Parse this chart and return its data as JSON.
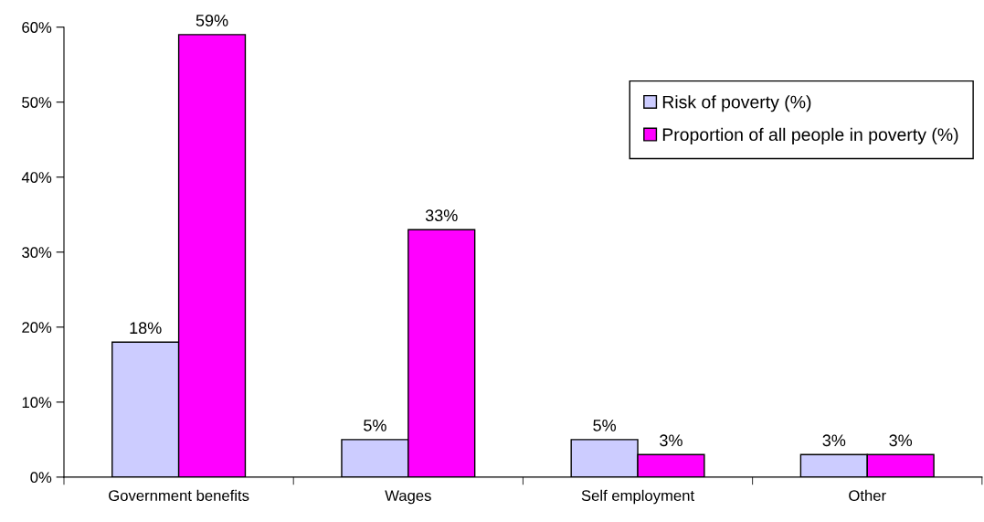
{
  "chart_data": {
    "type": "bar",
    "categories": [
      "Government benefits",
      "Wages",
      "Self employment",
      "Other"
    ],
    "series": [
      {
        "name": "Risk of poverty (%)",
        "color": "#ccccff",
        "values": [
          18,
          5,
          5,
          3
        ],
        "value_labels": [
          "18%",
          "5%",
          "5%",
          "3%"
        ]
      },
      {
        "name": "Proportion of all people in poverty (%)",
        "color": "#ff00ff",
        "values": [
          59,
          33,
          3,
          3
        ],
        "value_labels": [
          "59%",
          "33%",
          "3%",
          "3%"
        ]
      }
    ],
    "ylim": [
      0,
      60
    ],
    "yticks": [
      {
        "value": 0,
        "label": "0%"
      },
      {
        "value": 10,
        "label": "10%"
      },
      {
        "value": 20,
        "label": "20%"
      },
      {
        "value": 30,
        "label": "30%"
      },
      {
        "value": 40,
        "label": "40%"
      },
      {
        "value": 50,
        "label": "50%"
      },
      {
        "value": 60,
        "label": "60%"
      }
    ],
    "grid": false,
    "legend": "top right"
  }
}
